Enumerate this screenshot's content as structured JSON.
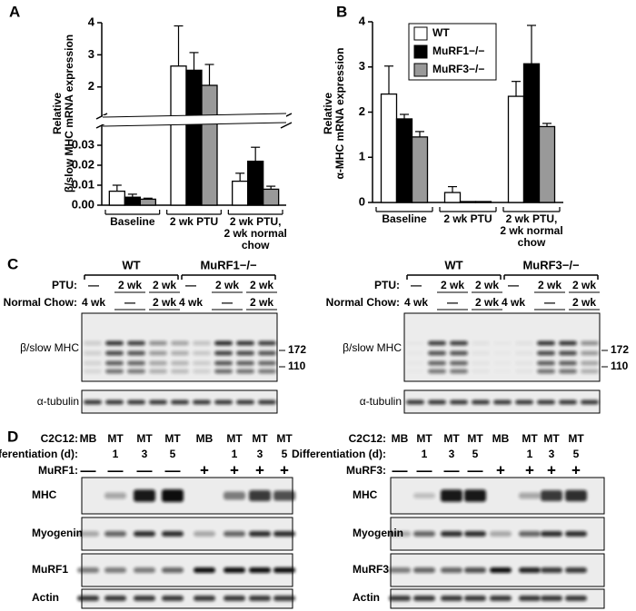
{
  "panel_labels": [
    "A",
    "B",
    "C",
    "D"
  ],
  "chart_data": [
    {
      "type": "bar",
      "y_label": "Relative\nβ/slow MHC mRNA expression",
      "categories": [
        "Baseline",
        "2 wk PTU",
        "2 wk PTU,\n2 wk normal chow"
      ],
      "series": [
        {
          "color": "#ffffff",
          "values": [
            0.007,
            2.65,
            0.012
          ],
          "errors": [
            0.003,
            1.25,
            0.004
          ]
        },
        {
          "color": "#000000",
          "values": [
            0.004,
            2.52,
            0.022
          ],
          "errors": [
            0.0015,
            0.55,
            0.007
          ]
        },
        {
          "color": "#999999",
          "values": [
            0.003,
            2.05,
            0.008
          ],
          "errors": [
            0.0005,
            0.65,
            0.0015
          ]
        }
      ],
      "y_segments": [
        {
          "ylim": [
            0,
            0.035
          ],
          "yticks": [
            {
              "value": 0,
              "label": "0.00"
            },
            0.01,
            0.02,
            0.03
          ]
        },
        {
          "ylim": [
            1.4,
            4
          ],
          "yticks": [
            2,
            3,
            4
          ]
        }
      ],
      "axis_break": true
    },
    {
      "type": "bar",
      "y_label": "Relative\nα-MHC mRNA expression",
      "categories": [
        "Baseline",
        "2 wk PTU",
        "2 wk PTU,\n2 wk normal chow"
      ],
      "series": [
        {
          "name": "WT",
          "color": "#ffffff",
          "values": [
            2.4,
            0.22,
            2.35
          ],
          "errors": [
            0.62,
            0.13,
            0.33
          ]
        },
        {
          "name": "MuRF1−/−",
          "color": "#000000",
          "values": [
            1.85,
            0.02,
            3.07
          ],
          "errors": [
            0.1,
            0,
            0.85
          ]
        },
        {
          "name": "MuRF3−/−",
          "color": "#999999",
          "values": [
            1.45,
            0.02,
            1.68
          ],
          "errors": [
            0.12,
            0,
            0.07
          ]
        }
      ],
      "ylim": [
        0,
        4
      ],
      "yticks": [
        0,
        1,
        2,
        3,
        4
      ],
      "legend": "upper left"
    }
  ],
  "panel_c": [
    {
      "groups": [
        "WT",
        "MuRF1−/−"
      ],
      "ptu_label": "PTU:",
      "ptu": [
        "—",
        "2 wk",
        "2 wk",
        "—",
        "2 wk",
        "2 wk"
      ],
      "chow_label": "Normal Chow:",
      "chow": [
        "4 wk",
        "—",
        "2 wk",
        "4 wk",
        "—",
        "2 wk"
      ],
      "blots": [
        "β/slow MHC",
        "α-tubulin"
      ],
      "markers": [
        172,
        110
      ]
    },
    {
      "groups": [
        "WT",
        "MuRF3−/−"
      ],
      "ptu_label": "PTU:",
      "ptu": [
        "—",
        "2 wk",
        "2 wk",
        "—",
        "2 wk",
        "2 wk"
      ],
      "chow_label": "Normal Chow:",
      "chow": [
        "4 wk",
        "—",
        "2 wk",
        "4 wk",
        "—",
        "2 wk"
      ],
      "blots": [
        "β/slow MHC",
        "α-tubulin"
      ],
      "markers": [
        172,
        110
      ]
    }
  ],
  "panel_d": [
    {
      "cell_label": "C2C12:",
      "cells": [
        "MB",
        "MT",
        "MT",
        "MT",
        "MB",
        "MT",
        "MT",
        "MT"
      ],
      "diff_label": "Differentiation (d):",
      "diff": [
        null,
        1,
        3,
        5,
        null,
        1,
        3,
        5
      ],
      "construct_label": "MuRF1:",
      "construct": [
        "—",
        "—",
        "—",
        "—",
        "+",
        "+",
        "+",
        "+"
      ],
      "blots": [
        "MHC",
        "Myogenin",
        "MuRF1",
        "Actin"
      ]
    },
    {
      "cell_label": "C2C12:",
      "cells": [
        "MB",
        "MT",
        "MT",
        "MT",
        "MB",
        "MT",
        "MT",
        "MT"
      ],
      "diff_label": "Differentiation (d):",
      "diff": [
        null,
        1,
        3,
        5,
        null,
        1,
        3,
        5
      ],
      "construct_label": "MuRF3:",
      "construct": [
        "—",
        "—",
        "—",
        "—",
        "+",
        "+",
        "+",
        "+"
      ],
      "blots": [
        "MHC",
        "Myogenin",
        "MuRF3",
        "Actin"
      ]
    }
  ]
}
